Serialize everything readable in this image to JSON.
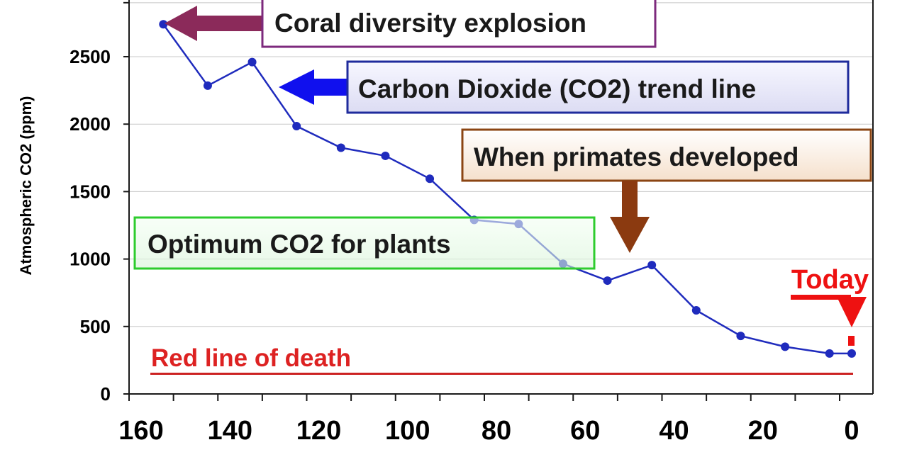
{
  "chart_data": {
    "type": "line",
    "ylabel": "Atmospheric CO2 (ppm)",
    "xlabel": "",
    "x_reversed": true,
    "xlim": [
      165,
      -2
    ],
    "ylim": [
      0,
      2900
    ],
    "xticks": [
      160,
      140,
      120,
      100,
      80,
      60,
      40,
      20,
      0
    ],
    "yticks": [
      0,
      500,
      1000,
      1500,
      2000,
      2500
    ],
    "grid": true,
    "series": [
      {
        "color": "#1f2bbd",
        "points": [
          {
            "x": 155,
            "y": 2740
          },
          {
            "x": 145,
            "y": 2285
          },
          {
            "x": 135,
            "y": 2460
          },
          {
            "x": 125,
            "y": 1985
          },
          {
            "x": 115,
            "y": 1825
          },
          {
            "x": 105,
            "y": 1765
          },
          {
            "x": 95,
            "y": 1595
          },
          {
            "x": 85,
            "y": 1290
          },
          {
            "x": 75,
            "y": 1260
          },
          {
            "x": 65,
            "y": 965
          },
          {
            "x": 55,
            "y": 840
          },
          {
            "x": 45,
            "y": 955
          },
          {
            "x": 35,
            "y": 620
          },
          {
            "x": 25,
            "y": 430
          },
          {
            "x": 15,
            "y": 350
          },
          {
            "x": 5,
            "y": 300
          },
          {
            "x": 0,
            "y": 300
          }
        ]
      }
    ],
    "reference_line": {
      "y": 150,
      "color": "#cc2222"
    },
    "annotations": {
      "coral": {
        "text": "Coral diversity explosion",
        "border": "#7d2a7d",
        "arrow_color": "#8b2a5a"
      },
      "trend": {
        "text": "Carbon Dioxide (CO2) trend line",
        "border": "#1f2b9c",
        "arrow_color": "#1010ee"
      },
      "primates": {
        "text": "When primates developed",
        "border": "#8b4513",
        "arrow_color": "#8b3a10"
      },
      "optimum": {
        "text": "Optimum CO2 for plants",
        "border": "#2ecc2e"
      },
      "today": {
        "text": "Today",
        "color": "#ee1111"
      },
      "death": {
        "text": "Red line of death",
        "color": "#dd2222"
      }
    }
  }
}
